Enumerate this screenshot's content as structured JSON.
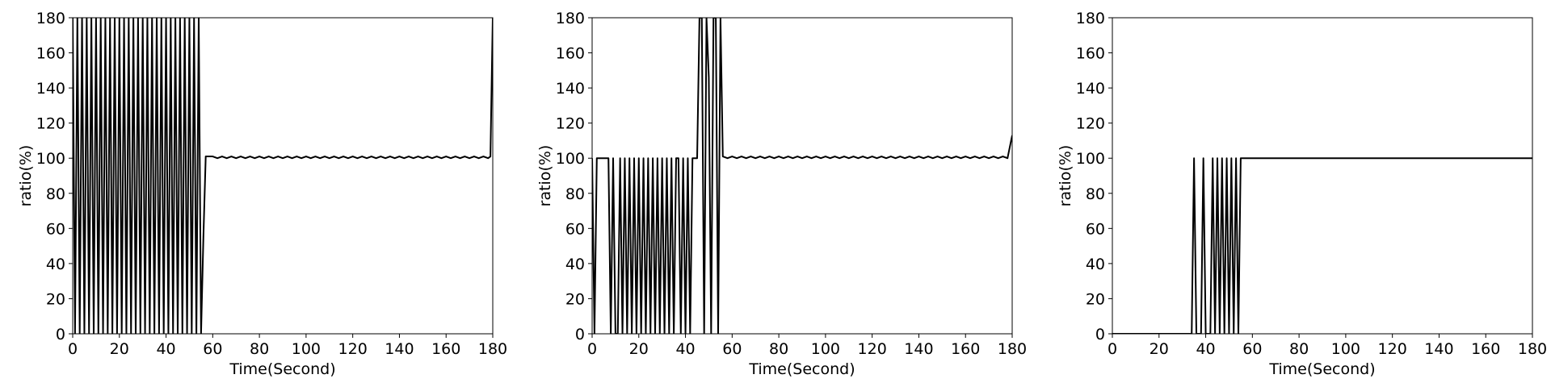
{
  "chart_data": [
    {
      "type": "line",
      "xlabel": "Time(Second)",
      "ylabel": "ratio(%)",
      "color": "#000000",
      "xlim": [
        0,
        180
      ],
      "xticks": [
        0,
        20,
        40,
        60,
        80,
        100,
        120,
        140,
        160,
        180
      ],
      "ylim": [
        0,
        180
      ],
      "yticks": [
        0,
        20,
        40,
        60,
        80,
        100,
        120,
        140,
        160,
        180
      ],
      "x": [
        0,
        1,
        2,
        3,
        4,
        5,
        6,
        7,
        8,
        9,
        10,
        11,
        12,
        13,
        14,
        15,
        16,
        17,
        18,
        19,
        20,
        21,
        22,
        23,
        24,
        25,
        26,
        27,
        28,
        29,
        30,
        31,
        32,
        33,
        34,
        35,
        36,
        37,
        38,
        39,
        40,
        41,
        42,
        43,
        44,
        45,
        46,
        47,
        48,
        49,
        50,
        51,
        52,
        53,
        54,
        55,
        56,
        57,
        60,
        62,
        64,
        66,
        68,
        70,
        72,
        74,
        76,
        78,
        80,
        82,
        84,
        86,
        88,
        90,
        92,
        94,
        96,
        98,
        100,
        102,
        104,
        106,
        108,
        110,
        112,
        114,
        116,
        118,
        120,
        122,
        124,
        126,
        128,
        130,
        132,
        134,
        136,
        138,
        140,
        142,
        144,
        146,
        148,
        150,
        152,
        154,
        156,
        158,
        160,
        162,
        164,
        166,
        168,
        170,
        172,
        174,
        176,
        178,
        179,
        180
      ],
      "values": [
        180,
        0,
        180,
        0,
        180,
        0,
        180,
        0,
        180,
        0,
        180,
        0,
        180,
        0,
        180,
        0,
        180,
        0,
        180,
        0,
        180,
        0,
        180,
        0,
        180,
        0,
        180,
        0,
        180,
        0,
        180,
        0,
        180,
        0,
        180,
        0,
        180,
        0,
        180,
        0,
        180,
        0,
        180,
        0,
        180,
        0,
        180,
        0,
        180,
        0,
        180,
        0,
        180,
        0,
        180,
        0,
        55,
        101,
        101,
        100,
        101,
        100,
        101,
        100,
        101,
        100,
        101,
        100,
        101,
        100,
        101,
        100,
        101,
        100,
        101,
        100,
        101,
        100,
        101,
        100,
        101,
        100,
        101,
        100,
        101,
        100,
        101,
        100,
        101,
        100,
        101,
        100,
        101,
        100,
        101,
        100,
        101,
        100,
        101,
        100,
        101,
        100,
        101,
        100,
        101,
        100,
        101,
        100,
        101,
        100,
        101,
        100,
        101,
        100,
        101,
        100,
        101,
        100,
        101,
        180
      ]
    },
    {
      "type": "line",
      "xlabel": "Time(Second)",
      "ylabel": "ratio(%)",
      "color": "#000000",
      "xlim": [
        0,
        180
      ],
      "xticks": [
        0,
        20,
        40,
        60,
        80,
        100,
        120,
        140,
        160,
        180
      ],
      "ylim": [
        0,
        180
      ],
      "yticks": [
        0,
        20,
        40,
        60,
        80,
        100,
        120,
        140,
        160,
        180
      ],
      "x": [
        0,
        1,
        2,
        7,
        8,
        9,
        10,
        11,
        12,
        13,
        14,
        15,
        16,
        17,
        18,
        19,
        20,
        21,
        22,
        23,
        24,
        25,
        26,
        27,
        28,
        29,
        30,
        31,
        32,
        33,
        34,
        35,
        36,
        37,
        38,
        39,
        40,
        41,
        42,
        43,
        44,
        45,
        46,
        47,
        48,
        49,
        50,
        51,
        52,
        53,
        54,
        55,
        56,
        58,
        60,
        62,
        64,
        66,
        68,
        70,
        72,
        74,
        76,
        78,
        80,
        82,
        84,
        86,
        88,
        90,
        92,
        94,
        96,
        98,
        100,
        102,
        104,
        106,
        108,
        110,
        112,
        114,
        116,
        118,
        120,
        122,
        124,
        126,
        128,
        130,
        132,
        134,
        136,
        138,
        140,
        142,
        144,
        146,
        148,
        150,
        152,
        154,
        156,
        158,
        160,
        162,
        164,
        166,
        168,
        170,
        172,
        174,
        176,
        178,
        180
      ],
      "values": [
        100,
        0,
        100,
        100,
        0,
        100,
        0,
        0,
        100,
        0,
        100,
        0,
        100,
        0,
        100,
        0,
        100,
        0,
        100,
        0,
        100,
        0,
        100,
        0,
        100,
        0,
        100,
        0,
        100,
        0,
        100,
        0,
        100,
        100,
        0,
        100,
        0,
        100,
        0,
        100,
        100,
        100,
        180,
        180,
        0,
        180,
        146,
        0,
        180,
        180,
        0,
        180,
        101,
        100,
        101,
        100,
        101,
        100,
        101,
        100,
        101,
        100,
        101,
        100,
        101,
        100,
        101,
        100,
        101,
        100,
        101,
        100,
        101,
        100,
        101,
        100,
        101,
        100,
        101,
        100,
        101,
        100,
        101,
        100,
        101,
        100,
        101,
        100,
        101,
        100,
        101,
        100,
        101,
        100,
        101,
        100,
        101,
        100,
        101,
        100,
        101,
        100,
        101,
        100,
        101,
        100,
        101,
        100,
        101,
        100,
        101,
        100,
        101,
        100,
        113
      ]
    },
    {
      "type": "line",
      "xlabel": "Time(Second)",
      "ylabel": "ratio(%)",
      "color": "#000000",
      "xlim": [
        0,
        180
      ],
      "xticks": [
        0,
        20,
        40,
        60,
        80,
        100,
        120,
        140,
        160,
        180
      ],
      "ylim": [
        0,
        180
      ],
      "yticks": [
        0,
        20,
        40,
        60,
        80,
        100,
        120,
        140,
        160,
        180
      ],
      "x": [
        0,
        34,
        35,
        36,
        38,
        39,
        40,
        42,
        43,
        44,
        45,
        46,
        47,
        48,
        49,
        50,
        51,
        52,
        53,
        54,
        55,
        180
      ],
      "values": [
        0,
        0,
        100,
        0,
        0,
        100,
        0,
        0,
        100,
        0,
        100,
        0,
        100,
        0,
        100,
        0,
        100,
        0,
        100,
        0,
        100,
        100
      ]
    }
  ]
}
